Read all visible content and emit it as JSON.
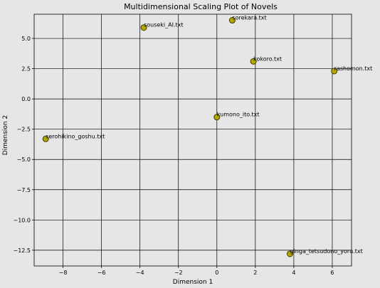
{
  "chart_data": {
    "type": "scatter",
    "title": "Multidimensional Scaling Plot of Novels",
    "xlabel": "Dimension 1",
    "ylabel": "Dimension 2",
    "xlim": [
      -9.5,
      7.0
    ],
    "ylim": [
      -13.8,
      7.0
    ],
    "xticks": [
      -8,
      -6,
      -4,
      -2,
      0,
      2,
      4,
      6
    ],
    "yticks": [
      5.0,
      2.5,
      0.0,
      -2.5,
      -5.0,
      -7.5,
      -10.0,
      -12.5
    ],
    "grid": true,
    "points": [
      {
        "label": "sorekara.txt",
        "x": 0.8,
        "y": 6.5
      },
      {
        "label": "souseki_AI.txt",
        "x": -3.8,
        "y": 5.9
      },
      {
        "label": "kokoro.txt",
        "x": 1.9,
        "y": 3.1
      },
      {
        "label": "rashomon.txt",
        "x": 6.1,
        "y": 2.3
      },
      {
        "label": "kumono_ito.txt",
        "x": 0.0,
        "y": -1.5
      },
      {
        "label": "serohikino_goshu.txt",
        "x": -8.9,
        "y": -3.3
      },
      {
        "label": "ginga_tetsudono_yoru.txt",
        "x": 3.8,
        "y": -12.8
      }
    ],
    "colors": {
      "background": "#e6e6e6",
      "plot_area": "#e6e6e6",
      "grid": "#000000",
      "marker_fill": "#b5a800",
      "marker_edge": "#3a3a00"
    }
  }
}
